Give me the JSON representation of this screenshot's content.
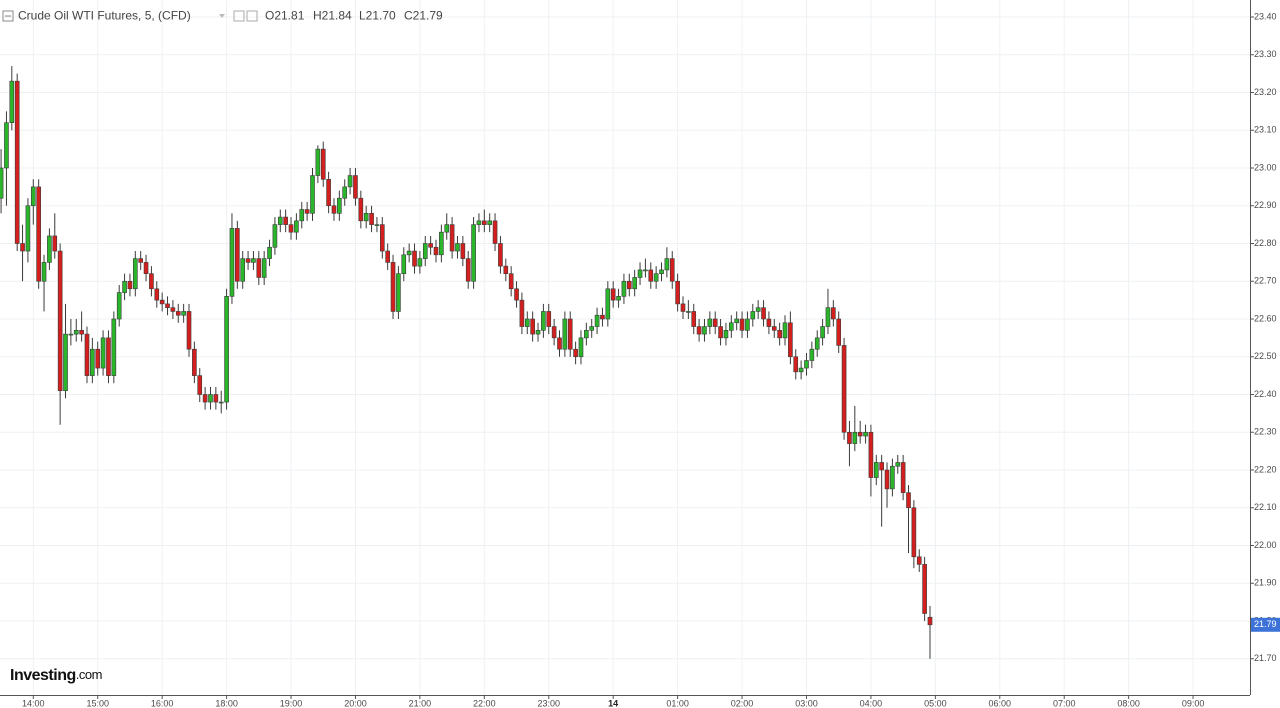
{
  "chart_data": {
    "type": "candlestick",
    "title": "Crude Oil WTI Futures, 5, (CFD)",
    "header_values": [
      "O21.81",
      "H21.84",
      "L21.70",
      "C21.79"
    ],
    "logo": [
      "Investing",
      ".com"
    ],
    "up_color": "#2bb52b",
    "down_color": "#d41f1f",
    "wick_color": "#3a3a3a",
    "grid": true,
    "xlim": [
      -0.2,
      232.6
    ],
    "xticks": [
      {
        "value": 6,
        "label": "14:00"
      },
      {
        "value": 18,
        "label": "15:00"
      },
      {
        "value": 30,
        "label": "16:00"
      },
      {
        "value": 42,
        "label": "18:00"
      },
      {
        "value": 54,
        "label": "19:00"
      },
      {
        "value": 66,
        "label": "20:00"
      },
      {
        "value": 78,
        "label": "21:00"
      },
      {
        "value": 90,
        "label": "22:00"
      },
      {
        "value": 102,
        "label": "23:00"
      },
      {
        "value": 114,
        "label": "14"
      },
      {
        "value": 126,
        "label": "01:00"
      },
      {
        "value": 138,
        "label": "02:00"
      },
      {
        "value": 150,
        "label": "03:00"
      },
      {
        "value": 162,
        "label": "04:00"
      },
      {
        "value": 174,
        "label": "05:00"
      },
      {
        "value": 186,
        "label": "06:00"
      },
      {
        "value": 198,
        "label": "07:00"
      },
      {
        "value": 210,
        "label": "08:00"
      },
      {
        "value": 222,
        "label": "09:00"
      }
    ],
    "ylim": [
      21.604,
      23.445
    ],
    "yticks": [
      {
        "value": 21.7,
        "label": "21.70"
      },
      {
        "value": 21.8,
        "label": "21.80"
      },
      {
        "value": 21.9,
        "label": "21.90"
      },
      {
        "value": 22,
        "label": "22.00"
      },
      {
        "value": 22.1,
        "label": "22.10"
      },
      {
        "value": 22.2,
        "label": "22.20"
      },
      {
        "value": 22.3,
        "label": "22.30"
      },
      {
        "value": 22.4,
        "label": "22.40"
      },
      {
        "value": 22.5,
        "label": "22.50"
      },
      {
        "value": 22.6,
        "label": "22.60"
      },
      {
        "value": 22.7,
        "label": "22.70"
      },
      {
        "value": 22.8,
        "label": "22.80"
      },
      {
        "value": 22.9,
        "label": "22.90"
      },
      {
        "value": 23,
        "label": "23.00"
      },
      {
        "value": 23.1,
        "label": "23.10"
      },
      {
        "value": 23.2,
        "label": "23.20"
      },
      {
        "value": 23.3,
        "label": "23.30"
      },
      {
        "value": 23.4,
        "label": "23.40"
      }
    ],
    "x": [
      0,
      1,
      2,
      3,
      4,
      5,
      6,
      7,
      8,
      9,
      10,
      11,
      12,
      13,
      14,
      15,
      16,
      17,
      18,
      19,
      20,
      21,
      22,
      23,
      24,
      25,
      26,
      27,
      28,
      29,
      30,
      31,
      32,
      33,
      34,
      35,
      36,
      37,
      38,
      39,
      40,
      41,
      42,
      43,
      44,
      45,
      46,
      47,
      48,
      49,
      50,
      51,
      52,
      53,
      54,
      55,
      56,
      57,
      58,
      59,
      60,
      61,
      62,
      63,
      64,
      65,
      66,
      67,
      68,
      69,
      70,
      71,
      72,
      73,
      74,
      75,
      76,
      77,
      78,
      79,
      80,
      81,
      82,
      83,
      84,
      85,
      86,
      87,
      88,
      89,
      90,
      91,
      92,
      93,
      94,
      95,
      96,
      97,
      98,
      99,
      100,
      101,
      102,
      103,
      104,
      105,
      106,
      107,
      108,
      109,
      110,
      111,
      112,
      113,
      114,
      115,
      116,
      117,
      118,
      119,
      120,
      121,
      122,
      123,
      124,
      125,
      126,
      127,
      128,
      129,
      130,
      131,
      132,
      133,
      134,
      135,
      136,
      137,
      138,
      139,
      140,
      141,
      142,
      143,
      144,
      145,
      146,
      147,
      148,
      149,
      150,
      151,
      152,
      153,
      154,
      155,
      156,
      157,
      158,
      159,
      160,
      161,
      162,
      163,
      164,
      165,
      166,
      167,
      168,
      169,
      170,
      171,
      172,
      173
    ],
    "ohlc": [
      [
        22.92,
        23.05,
        22.88,
        23.0
      ],
      [
        23.0,
        23.15,
        22.9,
        23.12
      ],
      [
        23.12,
        23.27,
        23.1,
        23.23
      ],
      [
        23.23,
        23.25,
        22.78,
        22.8
      ],
      [
        22.8,
        22.85,
        22.7,
        22.78
      ],
      [
        22.78,
        22.92,
        22.75,
        22.9
      ],
      [
        22.9,
        22.97,
        22.85,
        22.95
      ],
      [
        22.95,
        22.97,
        22.68,
        22.7
      ],
      [
        22.7,
        22.77,
        22.62,
        22.75
      ],
      [
        22.75,
        22.84,
        22.73,
        22.82
      ],
      [
        22.82,
        22.88,
        22.76,
        22.78
      ],
      [
        22.78,
        22.8,
        22.32,
        22.41
      ],
      [
        22.41,
        22.64,
        22.39,
        22.56
      ],
      [
        22.56,
        22.6,
        22.53,
        22.56
      ],
      [
        22.56,
        22.6,
        22.54,
        22.57
      ],
      [
        22.57,
        22.62,
        22.54,
        22.56
      ],
      [
        22.56,
        22.58,
        22.43,
        22.45
      ],
      [
        22.45,
        22.55,
        22.43,
        22.52
      ],
      [
        22.52,
        22.54,
        22.45,
        22.47
      ],
      [
        22.47,
        22.57,
        22.45,
        22.55
      ],
      [
        22.55,
        22.57,
        22.43,
        22.45
      ],
      [
        22.45,
        22.62,
        22.43,
        22.6
      ],
      [
        22.6,
        22.69,
        22.58,
        22.67
      ],
      [
        22.67,
        22.72,
        22.65,
        22.7
      ],
      [
        22.7,
        22.72,
        22.66,
        22.68
      ],
      [
        22.68,
        22.78,
        22.66,
        22.76
      ],
      [
        22.76,
        22.78,
        22.73,
        22.75
      ],
      [
        22.75,
        22.77,
        22.7,
        22.72
      ],
      [
        22.72,
        22.74,
        22.66,
        22.68
      ],
      [
        22.68,
        22.7,
        22.63,
        22.65
      ],
      [
        22.65,
        22.67,
        22.62,
        22.64
      ],
      [
        22.64,
        22.66,
        22.61,
        22.63
      ],
      [
        22.63,
        22.65,
        22.6,
        22.62
      ],
      [
        22.62,
        22.64,
        22.59,
        22.61
      ],
      [
        22.61,
        22.64,
        22.59,
        22.62
      ],
      [
        22.62,
        22.64,
        22.5,
        22.52
      ],
      [
        22.52,
        22.54,
        22.43,
        22.45
      ],
      [
        22.45,
        22.47,
        22.38,
        22.4
      ],
      [
        22.4,
        22.42,
        22.36,
        22.38
      ],
      [
        22.38,
        22.42,
        22.36,
        22.4
      ],
      [
        22.4,
        22.42,
        22.36,
        22.38
      ],
      [
        22.38,
        22.41,
        22.35,
        22.38
      ],
      [
        22.38,
        22.68,
        22.36,
        22.66
      ],
      [
        22.66,
        22.88,
        22.64,
        22.84
      ],
      [
        22.84,
        22.86,
        22.68,
        22.7
      ],
      [
        22.7,
        22.78,
        22.68,
        22.76
      ],
      [
        22.76,
        22.78,
        22.73,
        22.75
      ],
      [
        22.75,
        22.78,
        22.73,
        22.76
      ],
      [
        22.76,
        22.78,
        22.69,
        22.71
      ],
      [
        22.71,
        22.78,
        22.69,
        22.76
      ],
      [
        22.76,
        22.81,
        22.74,
        22.79
      ],
      [
        22.79,
        22.87,
        22.77,
        22.85
      ],
      [
        22.85,
        22.89,
        22.83,
        22.87
      ],
      [
        22.87,
        22.89,
        22.83,
        22.85
      ],
      [
        22.85,
        22.87,
        22.81,
        22.83
      ],
      [
        22.83,
        22.88,
        22.81,
        22.86
      ],
      [
        22.86,
        22.91,
        22.84,
        22.89
      ],
      [
        22.89,
        22.91,
        22.86,
        22.88
      ],
      [
        22.88,
        23.0,
        22.86,
        22.98
      ],
      [
        22.98,
        23.06,
        22.96,
        23.05
      ],
      [
        23.05,
        23.07,
        22.95,
        22.97
      ],
      [
        22.97,
        22.99,
        22.88,
        22.9
      ],
      [
        22.9,
        22.92,
        22.86,
        22.88
      ],
      [
        22.88,
        22.94,
        22.86,
        22.92
      ],
      [
        22.92,
        22.97,
        22.9,
        22.95
      ],
      [
        22.95,
        23.0,
        22.93,
        22.98
      ],
      [
        22.98,
        23.0,
        22.9,
        22.92
      ],
      [
        22.92,
        22.94,
        22.84,
        22.86
      ],
      [
        22.86,
        22.9,
        22.84,
        22.88
      ],
      [
        22.88,
        22.9,
        22.83,
        22.85
      ],
      [
        22.85,
        22.87,
        22.83,
        22.85
      ],
      [
        22.85,
        22.87,
        22.76,
        22.78
      ],
      [
        22.78,
        22.8,
        22.73,
        22.75
      ],
      [
        22.75,
        22.77,
        22.6,
        22.62
      ],
      [
        22.62,
        22.74,
        22.6,
        22.72
      ],
      [
        22.72,
        22.79,
        22.7,
        22.77
      ],
      [
        22.77,
        22.8,
        22.75,
        22.78
      ],
      [
        22.78,
        22.8,
        22.72,
        22.74
      ],
      [
        22.74,
        22.78,
        22.72,
        22.76
      ],
      [
        22.76,
        22.82,
        22.74,
        22.8
      ],
      [
        22.8,
        22.82,
        22.77,
        22.79
      ],
      [
        22.79,
        22.81,
        22.75,
        22.77
      ],
      [
        22.77,
        22.85,
        22.75,
        22.83
      ],
      [
        22.83,
        22.88,
        22.81,
        22.85
      ],
      [
        22.85,
        22.87,
        22.76,
        22.78
      ],
      [
        22.78,
        22.82,
        22.76,
        22.8
      ],
      [
        22.8,
        22.82,
        22.74,
        22.76
      ],
      [
        22.76,
        22.78,
        22.68,
        22.7
      ],
      [
        22.7,
        22.87,
        22.68,
        22.85
      ],
      [
        22.85,
        22.88,
        22.83,
        22.86
      ],
      [
        22.86,
        22.89,
        22.83,
        22.85
      ],
      [
        22.85,
        22.88,
        22.83,
        22.86
      ],
      [
        22.86,
        22.88,
        22.78,
        22.8
      ],
      [
        22.8,
        22.82,
        22.72,
        22.74
      ],
      [
        22.74,
        22.76,
        22.7,
        22.72
      ],
      [
        22.72,
        22.74,
        22.66,
        22.68
      ],
      [
        22.68,
        22.7,
        22.63,
        22.65
      ],
      [
        22.65,
        22.67,
        22.56,
        22.58
      ],
      [
        22.58,
        22.62,
        22.56,
        22.6
      ],
      [
        22.6,
        22.62,
        22.54,
        22.56
      ],
      [
        22.56,
        22.59,
        22.54,
        22.57
      ],
      [
        22.57,
        22.64,
        22.55,
        22.62
      ],
      [
        22.62,
        22.64,
        22.56,
        22.58
      ],
      [
        22.58,
        22.6,
        22.53,
        22.55
      ],
      [
        22.55,
        22.57,
        22.5,
        22.52
      ],
      [
        22.52,
        22.62,
        22.5,
        22.6
      ],
      [
        22.6,
        22.62,
        22.5,
        22.52
      ],
      [
        22.52,
        22.54,
        22.48,
        22.5
      ],
      [
        22.5,
        22.57,
        22.48,
        22.55
      ],
      [
        22.55,
        22.59,
        22.53,
        22.57
      ],
      [
        22.57,
        22.6,
        22.55,
        22.58
      ],
      [
        22.58,
        22.63,
        22.56,
        22.61
      ],
      [
        22.61,
        22.63,
        22.58,
        22.6
      ],
      [
        22.6,
        22.7,
        22.58,
        22.68
      ],
      [
        22.68,
        22.7,
        22.63,
        22.65
      ],
      [
        22.65,
        22.68,
        22.63,
        22.66
      ],
      [
        22.66,
        22.72,
        22.64,
        22.7
      ],
      [
        22.7,
        22.72,
        22.66,
        22.68
      ],
      [
        22.68,
        22.73,
        22.66,
        22.71
      ],
      [
        22.71,
        22.75,
        22.69,
        22.73
      ],
      [
        22.73,
        22.76,
        22.71,
        22.73
      ],
      [
        22.73,
        22.75,
        22.68,
        22.7
      ],
      [
        22.7,
        22.74,
        22.68,
        22.72
      ],
      [
        22.72,
        22.75,
        22.7,
        22.73
      ],
      [
        22.73,
        22.79,
        22.71,
        22.76
      ],
      [
        22.76,
        22.78,
        22.68,
        22.7
      ],
      [
        22.7,
        22.72,
        22.62,
        22.64
      ],
      [
        22.64,
        22.66,
        22.6,
        22.62
      ],
      [
        22.62,
        22.65,
        22.6,
        22.62
      ],
      [
        22.62,
        22.64,
        22.56,
        22.58
      ],
      [
        22.58,
        22.6,
        22.54,
        22.56
      ],
      [
        22.56,
        22.6,
        22.54,
        22.58
      ],
      [
        22.58,
        22.62,
        22.56,
        22.6
      ],
      [
        22.6,
        22.62,
        22.56,
        22.58
      ],
      [
        22.58,
        22.6,
        22.53,
        22.55
      ],
      [
        22.55,
        22.59,
        22.53,
        22.57
      ],
      [
        22.57,
        22.61,
        22.55,
        22.59
      ],
      [
        22.59,
        22.62,
        22.57,
        22.6
      ],
      [
        22.6,
        22.62,
        22.55,
        22.57
      ],
      [
        22.57,
        22.62,
        22.55,
        22.6
      ],
      [
        22.6,
        22.64,
        22.58,
        22.62
      ],
      [
        22.62,
        22.65,
        22.6,
        22.63
      ],
      [
        22.63,
        22.65,
        22.58,
        22.6
      ],
      [
        22.6,
        22.62,
        22.56,
        22.58
      ],
      [
        22.58,
        22.6,
        22.55,
        22.57
      ],
      [
        22.57,
        22.59,
        22.53,
        22.55
      ],
      [
        22.55,
        22.61,
        22.53,
        22.59
      ],
      [
        22.59,
        22.62,
        22.48,
        22.5
      ],
      [
        22.5,
        22.52,
        22.44,
        22.46
      ],
      [
        22.46,
        22.49,
        22.44,
        22.47
      ],
      [
        22.47,
        22.51,
        22.45,
        22.49
      ],
      [
        22.49,
        22.54,
        22.47,
        22.52
      ],
      [
        22.52,
        22.57,
        22.5,
        22.55
      ],
      [
        22.55,
        22.6,
        22.53,
        22.58
      ],
      [
        22.58,
        22.68,
        22.56,
        22.63
      ],
      [
        22.63,
        22.65,
        22.58,
        22.6
      ],
      [
        22.6,
        22.62,
        22.51,
        22.53
      ],
      [
        22.53,
        22.55,
        22.28,
        22.3
      ],
      [
        22.3,
        22.33,
        22.21,
        22.27
      ],
      [
        22.27,
        22.37,
        22.25,
        22.3
      ],
      [
        22.3,
        22.33,
        22.27,
        22.29
      ],
      [
        22.29,
        22.32,
        22.27,
        22.3
      ],
      [
        22.3,
        22.32,
        22.13,
        22.18
      ],
      [
        22.18,
        22.24,
        22.16,
        22.22
      ],
      [
        22.22,
        22.24,
        22.05,
        22.2
      ],
      [
        22.2,
        22.22,
        22.1,
        22.15
      ],
      [
        22.15,
        22.23,
        22.13,
        22.21
      ],
      [
        22.21,
        22.24,
        22.19,
        22.22
      ],
      [
        22.22,
        22.24,
        22.12,
        22.14
      ],
      [
        22.14,
        22.16,
        21.98,
        22.1
      ],
      [
        22.1,
        22.12,
        21.94,
        21.97
      ],
      [
        21.97,
        21.99,
        21.93,
        21.95
      ],
      [
        21.95,
        21.97,
        21.8,
        21.82
      ],
      [
        21.81,
        21.84,
        21.7,
        21.79
      ]
    ]
  }
}
